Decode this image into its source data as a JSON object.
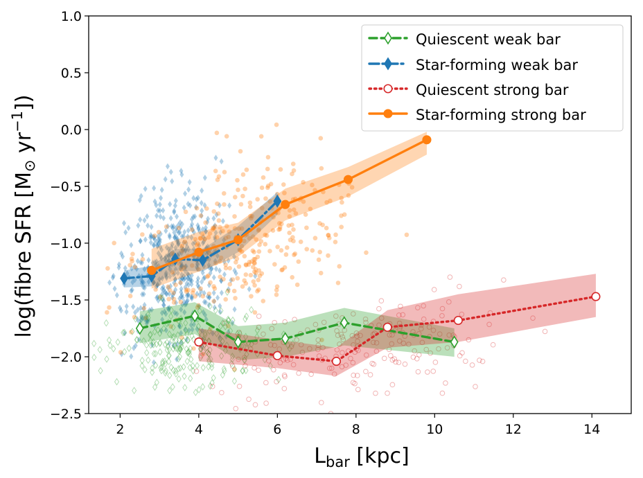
{
  "chart_data": {
    "type": "line",
    "title": "",
    "xlabel": {
      "main": "L",
      "sub": "bar",
      "rest": " [kpc]"
    },
    "ylabel": {
      "pre": "log(fibre SFR [M",
      "sub": "⊙",
      "mid": " yr",
      "sup": "−1",
      "post": "])"
    },
    "xlim": [
      1.2,
      15.0
    ],
    "ylim": [
      -2.5,
      1.0
    ],
    "xticks": [
      2,
      4,
      6,
      8,
      10,
      12,
      14
    ],
    "xtick_labels": [
      "2",
      "4",
      "6",
      "8",
      "10",
      "12",
      "14"
    ],
    "yticks": [
      1.0,
      0.5,
      0.0,
      -0.5,
      -1.0,
      -1.5,
      -2.0,
      -2.5
    ],
    "ytick_labels": [
      "1.0",
      "0.5",
      "0.0",
      "−0.5",
      "−1.0",
      "−1.5",
      "−2.0",
      "−2.5"
    ],
    "grid": false,
    "legend_position": "top-right",
    "series": [
      {
        "name": "Quiescent weak bar",
        "color": "#2ca02c",
        "linestyle": "dashed",
        "marker": "diamond-open",
        "x": [
          2.5,
          3.9,
          5.0,
          6.2,
          7.7,
          10.5
        ],
        "y": [
          -1.75,
          -1.64,
          -1.87,
          -1.84,
          -1.7,
          -1.87
        ],
        "band_upper": [
          -1.6,
          -1.52,
          -1.73,
          -1.7,
          -1.57,
          -1.75
        ],
        "band_lower": [
          -1.88,
          -1.8,
          -2.03,
          -2.0,
          -1.9,
          -2.0
        ]
      },
      {
        "name": "Star-forming weak bar",
        "color": "#1f77b4",
        "linestyle": "dashdot",
        "marker": "diamond-filled",
        "x": [
          2.1,
          2.8,
          3.4,
          4.1,
          5.0,
          6.0
        ],
        "y": [
          -1.31,
          -1.29,
          -1.14,
          -1.15,
          -0.97,
          -0.63
        ],
        "band_upper": [
          -1.24,
          -1.2,
          -1.05,
          -1.05,
          -0.85,
          -0.55
        ],
        "band_lower": [
          -1.39,
          -1.38,
          -1.24,
          -1.25,
          -1.08,
          -0.75
        ]
      },
      {
        "name": "Quiescent strong bar",
        "color": "#d62728",
        "linestyle": "dotted",
        "marker": "circle-open",
        "x": [
          4.0,
          6.0,
          7.5,
          8.8,
          10.6,
          14.1
        ],
        "y": [
          -1.87,
          -1.99,
          -2.04,
          -1.74,
          -1.68,
          -1.47
        ],
        "band_upper": [
          -1.75,
          -1.85,
          -1.92,
          -1.59,
          -1.45,
          -1.27
        ],
        "band_lower": [
          -2.04,
          -2.1,
          -2.17,
          -1.92,
          -1.87,
          -1.65
        ]
      },
      {
        "name": "Star-forming strong bar",
        "color": "#ff7f0e",
        "linestyle": "solid",
        "marker": "circle-filled",
        "x": [
          2.8,
          4.0,
          5.0,
          6.2,
          7.8,
          9.8
        ],
        "y": [
          -1.24,
          -1.08,
          -0.97,
          -0.66,
          -0.44,
          -0.09
        ],
        "band_upper": [
          -1.05,
          -0.9,
          -0.82,
          -0.52,
          -0.33,
          -0.02
        ],
        "band_lower": [
          -1.4,
          -1.25,
          -1.12,
          -0.8,
          -0.59,
          -0.22
        ]
      }
    ]
  }
}
